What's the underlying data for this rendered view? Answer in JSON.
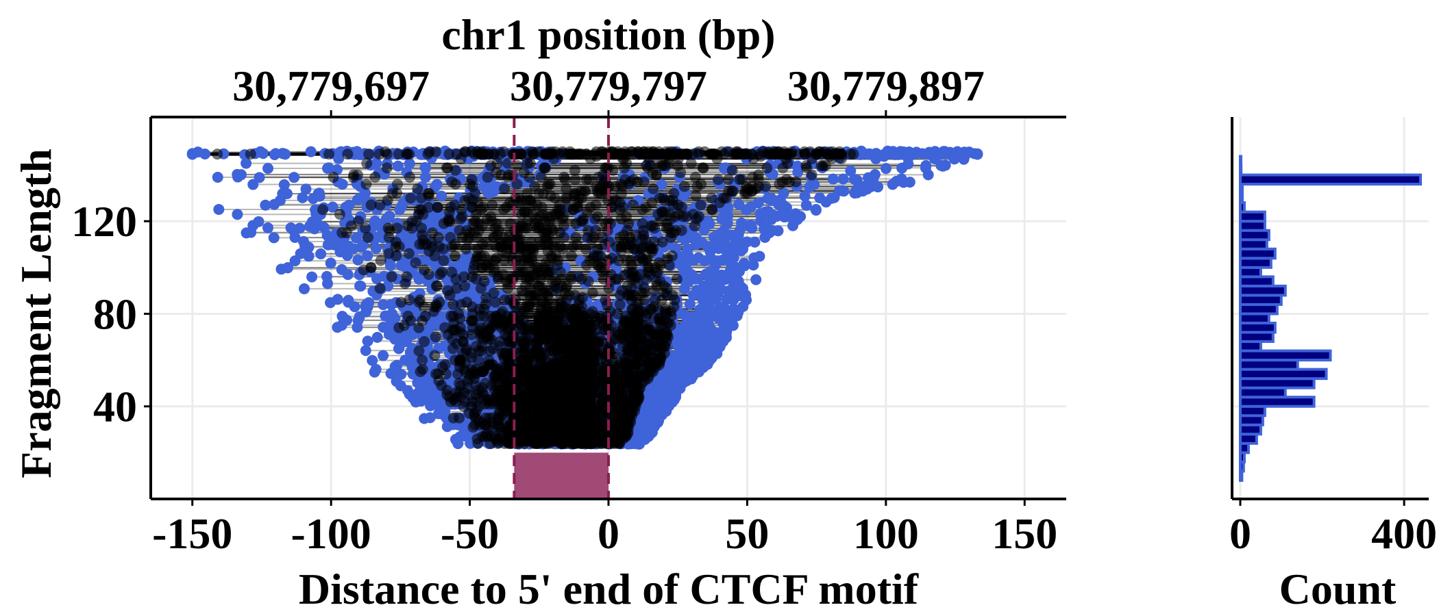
{
  "chart_data": [
    {
      "type": "scatter",
      "title": "",
      "xlabel": "Distance to 5' end of CTCF motif",
      "ylabel": "Fragment Length",
      "secondary_xlabel": "chr1 position (bp)",
      "xlim": [
        -165,
        165
      ],
      "ylim": [
        0,
        165
      ],
      "x_ticks": [
        -150,
        -100,
        -50,
        0,
        50,
        100,
        150
      ],
      "x_tick_labels": [
        "-150",
        "-100",
        "-50",
        "0",
        "50",
        "100",
        "150"
      ],
      "y_ticks": [
        40,
        80,
        120
      ],
      "y_tick_labels": [
        "40",
        "80",
        "120"
      ],
      "secondary_x_ticks": [
        -100,
        0,
        100
      ],
      "secondary_x_tick_labels": [
        "30,779,697",
        "30,779,797",
        "30,779,897"
      ],
      "motif_region": {
        "x_start": -34,
        "x_end": 0,
        "y_top": 20
      },
      "reference_lines_x": [
        -34,
        0
      ],
      "point_color": "#3f63d8",
      "segment_color": "#000000",
      "motif_color": "#a04a75",
      "grid": true,
      "fragment_envelope": [
        [
          24,
          -57,
          12
        ],
        [
          30,
          -62,
          17
        ],
        [
          40,
          -72,
          22
        ],
        [
          50,
          -80,
          28
        ],
        [
          60,
          -90,
          38
        ],
        [
          70,
          -94,
          43
        ],
        [
          80,
          -104,
          47
        ],
        [
          90,
          -112,
          53
        ],
        [
          100,
          -120,
          55
        ],
        [
          110,
          -122,
          55
        ],
        [
          120,
          -140,
          70
        ],
        [
          130,
          -143,
          82
        ],
        [
          137,
          -148,
          110
        ],
        [
          149,
          -150,
          133
        ]
      ]
    },
    {
      "type": "bar",
      "orientation": "horizontal",
      "xlabel": "Count",
      "xlim": [
        0,
        460
      ],
      "x_ticks": [
        0,
        400
      ],
      "x_tick_labels": [
        "0",
        "400"
      ],
      "ylim": [
        0,
        165
      ],
      "bin_width": 4,
      "fill_color": "#000080",
      "outline_color": "#3f63d8",
      "bins": [
        [
          10,
          4
        ],
        [
          14,
          8
        ],
        [
          18,
          10
        ],
        [
          22,
          20
        ],
        [
          26,
          40
        ],
        [
          30,
          50
        ],
        [
          34,
          55
        ],
        [
          38,
          60
        ],
        [
          42,
          180
        ],
        [
          46,
          110
        ],
        [
          50,
          180
        ],
        [
          54,
          210
        ],
        [
          58,
          140
        ],
        [
          62,
          220
        ],
        [
          66,
          50
        ],
        [
          70,
          80
        ],
        [
          74,
          85
        ],
        [
          78,
          70
        ],
        [
          82,
          90
        ],
        [
          86,
          100
        ],
        [
          90,
          110
        ],
        [
          94,
          80
        ],
        [
          98,
          50
        ],
        [
          102,
          75
        ],
        [
          106,
          85
        ],
        [
          110,
          65
        ],
        [
          114,
          70
        ],
        [
          118,
          60
        ],
        [
          122,
          60
        ],
        [
          126,
          10
        ],
        [
          130,
          5
        ],
        [
          134,
          5
        ],
        [
          138,
          440
        ],
        [
          142,
          2
        ],
        [
          146,
          1
        ]
      ]
    }
  ]
}
